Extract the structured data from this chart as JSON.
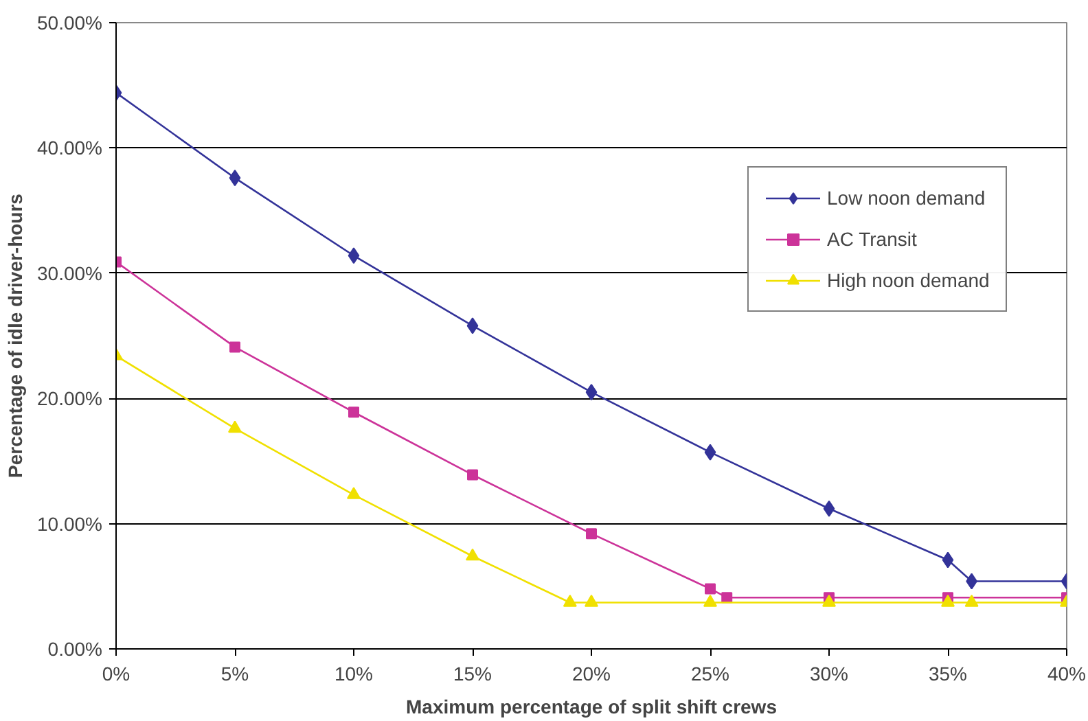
{
  "chart_data": {
    "type": "line",
    "xlabel": "Maximum percentage of split shift crews",
    "ylabel": "Percentage of idle driver-hours",
    "xlim": [
      0,
      40
    ],
    "ylim": [
      0,
      50
    ],
    "xticks": [
      {
        "value": 0,
        "label": "0%"
      },
      {
        "value": 5,
        "label": "5%"
      },
      {
        "value": 10,
        "label": "10%"
      },
      {
        "value": 15,
        "label": "15%"
      },
      {
        "value": 20,
        "label": "20%"
      },
      {
        "value": 25,
        "label": "25%"
      },
      {
        "value": 30,
        "label": "30%"
      },
      {
        "value": 35,
        "label": "35%"
      },
      {
        "value": 40,
        "label": "40%"
      }
    ],
    "yticks": [
      {
        "value": 0,
        "label": "0.00%"
      },
      {
        "value": 10,
        "label": "10.00%"
      },
      {
        "value": 20,
        "label": "20.00%"
      },
      {
        "value": 30,
        "label": "30.00%"
      },
      {
        "value": 40,
        "label": "40.00%"
      },
      {
        "value": 50,
        "label": "50.00%"
      }
    ],
    "grid": "y",
    "legend": "right",
    "series": [
      {
        "name": "Low noon demand",
        "color": "#333399",
        "marker": "diamond",
        "x": [
          0,
          5,
          10,
          15,
          20,
          25,
          30,
          35,
          36,
          40
        ],
        "values": [
          44.4,
          37.6,
          31.4,
          25.8,
          20.5,
          15.7,
          11.2,
          7.1,
          5.4,
          5.4
        ]
      },
      {
        "name": "AC Transit",
        "color": "#cc3399",
        "marker": "square",
        "x": [
          0,
          5,
          10,
          15,
          20,
          25,
          25.7,
          30,
          35,
          40
        ],
        "values": [
          30.9,
          24.1,
          18.9,
          13.9,
          9.2,
          4.8,
          4.1,
          4.1,
          4.1,
          4.1
        ]
      },
      {
        "name": "High noon demand",
        "color": "#f0e000",
        "marker": "triangle",
        "x": [
          0,
          5,
          10,
          15,
          19.1,
          20,
          25,
          30,
          35,
          36,
          40
        ],
        "values": [
          23.4,
          17.6,
          12.3,
          7.4,
          3.7,
          3.7,
          3.7,
          3.7,
          3.7,
          3.7,
          3.7
        ]
      }
    ]
  }
}
